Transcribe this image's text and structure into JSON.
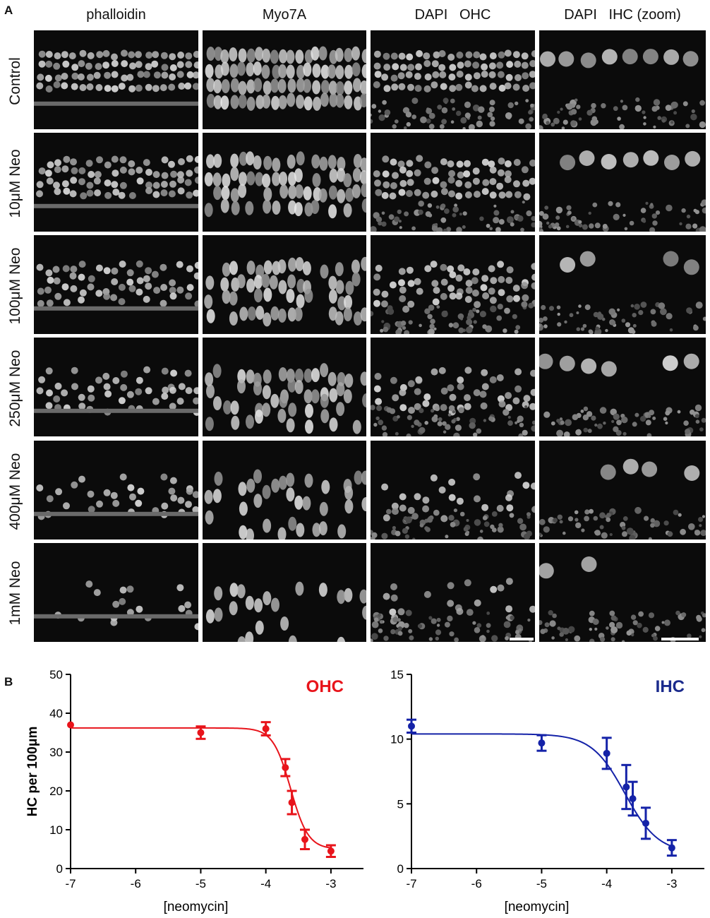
{
  "panel_a": {
    "letter": "A",
    "columns": [
      "phalloidin",
      "Myo7A",
      "DAPI   OHC",
      "DAPI   IHC (zoom)"
    ],
    "rows": [
      "Control",
      "10μM Neo",
      "100μM Neo",
      "250μM Neo",
      "400μM Neo",
      "1mM Neo"
    ]
  },
  "panel_b": {
    "letter": "B"
  },
  "chart_data": [
    {
      "type": "scatter",
      "title": "OHC",
      "title_color": "#e8141b",
      "color": "#e8141b",
      "xlabel": "[neomycin]",
      "ylabel": "HC per 100μm",
      "xlim": [
        -7,
        -2.5
      ],
      "ylim": [
        0,
        50
      ],
      "xticks": [
        -7,
        -6,
        -5,
        -4,
        -3
      ],
      "yticks": [
        0,
        10,
        20,
        30,
        40,
        50
      ],
      "fit": {
        "top": 36.2,
        "bottom": 5.0,
        "logEC50": -3.62,
        "hill": -3.2
      },
      "points": [
        {
          "x": -7,
          "y": 37,
          "err": 0
        },
        {
          "x": -5,
          "y": 35,
          "err": 1.6
        },
        {
          "x": -4,
          "y": 36,
          "err": 1.7
        },
        {
          "x": -3.7,
          "y": 26,
          "err": 2.2
        },
        {
          "x": -3.6,
          "y": 17,
          "err": 3
        },
        {
          "x": -3.4,
          "y": 7.5,
          "err": 2.5
        },
        {
          "x": -3,
          "y": 4.5,
          "err": 1.5
        }
      ]
    },
    {
      "type": "scatter",
      "title": "IHC",
      "title_color": "#1a2a8c",
      "color": "#1422a8",
      "xlabel": "[neomycin]",
      "ylabel": "",
      "xlim": [
        -7,
        -2.5
      ],
      "ylim": [
        0,
        15
      ],
      "xticks": [
        -7,
        -6,
        -5,
        -4,
        -3
      ],
      "yticks": [
        0,
        5,
        10,
        15
      ],
      "fit": {
        "top": 10.4,
        "bottom": 1.2,
        "logEC50": -3.72,
        "hill": -1.7
      },
      "points": [
        {
          "x": -7,
          "y": 11,
          "err": 0.5
        },
        {
          "x": -5,
          "y": 9.7,
          "err": 0.6
        },
        {
          "x": -4,
          "y": 8.9,
          "err": 1.2
        },
        {
          "x": -3.7,
          "y": 6.3,
          "err": 1.7
        },
        {
          "x": -3.6,
          "y": 5.4,
          "err": 1.3
        },
        {
          "x": -3.4,
          "y": 3.5,
          "err": 1.2
        },
        {
          "x": -3,
          "y": 1.6,
          "err": 0.6
        }
      ]
    }
  ]
}
